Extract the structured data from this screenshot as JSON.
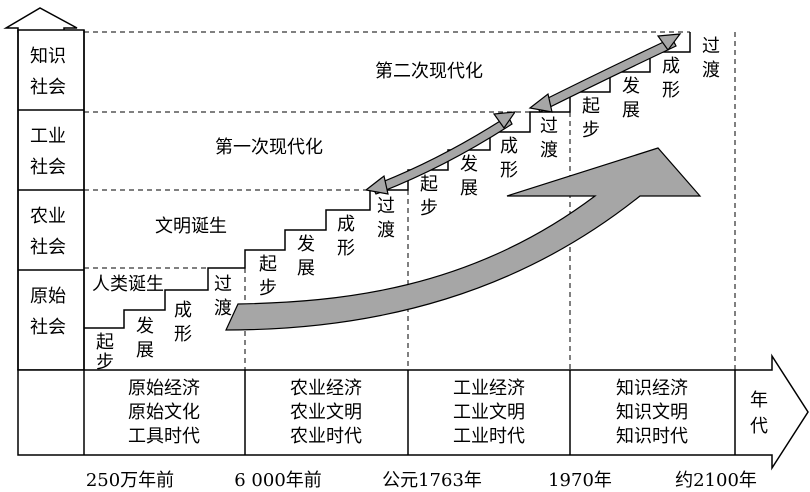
{
  "society_levels": [
    {
      "line1": "知识",
      "line2": "社会"
    },
    {
      "line1": "工业",
      "line2": "社会"
    },
    {
      "line1": "农业",
      "line2": "社会"
    },
    {
      "line1": "原始",
      "line2": "社会"
    }
  ],
  "milestones": {
    "human_birth": "人类诞生",
    "civilization_birth": "文明诞生",
    "first_modernization": "第一次现代化",
    "second_modernization": "第二次现代化"
  },
  "stair_labels": [
    "起",
    "步",
    "发",
    "展",
    "成",
    "形",
    "过",
    "渡"
  ],
  "eras": [
    {
      "lines": [
        "原始经济",
        "原始文化",
        "工具时代"
      ]
    },
    {
      "lines": [
        "农业经济",
        "农业文明",
        "农业时代"
      ]
    },
    {
      "lines": [
        "工业经济",
        "工业文明",
        "工业时代"
      ]
    },
    {
      "lines": [
        "知识经济",
        "知识文明",
        "知识时代"
      ]
    }
  ],
  "axis_unit": {
    "line1": "年",
    "line2": "代"
  },
  "dates": [
    "250万年前",
    "6 000年前",
    "公元1763年",
    "1970年",
    "约2100年"
  ],
  "colors": {
    "line": "#000000",
    "arrow_fill": "#a6a6a6",
    "background": "#ffffff"
  }
}
